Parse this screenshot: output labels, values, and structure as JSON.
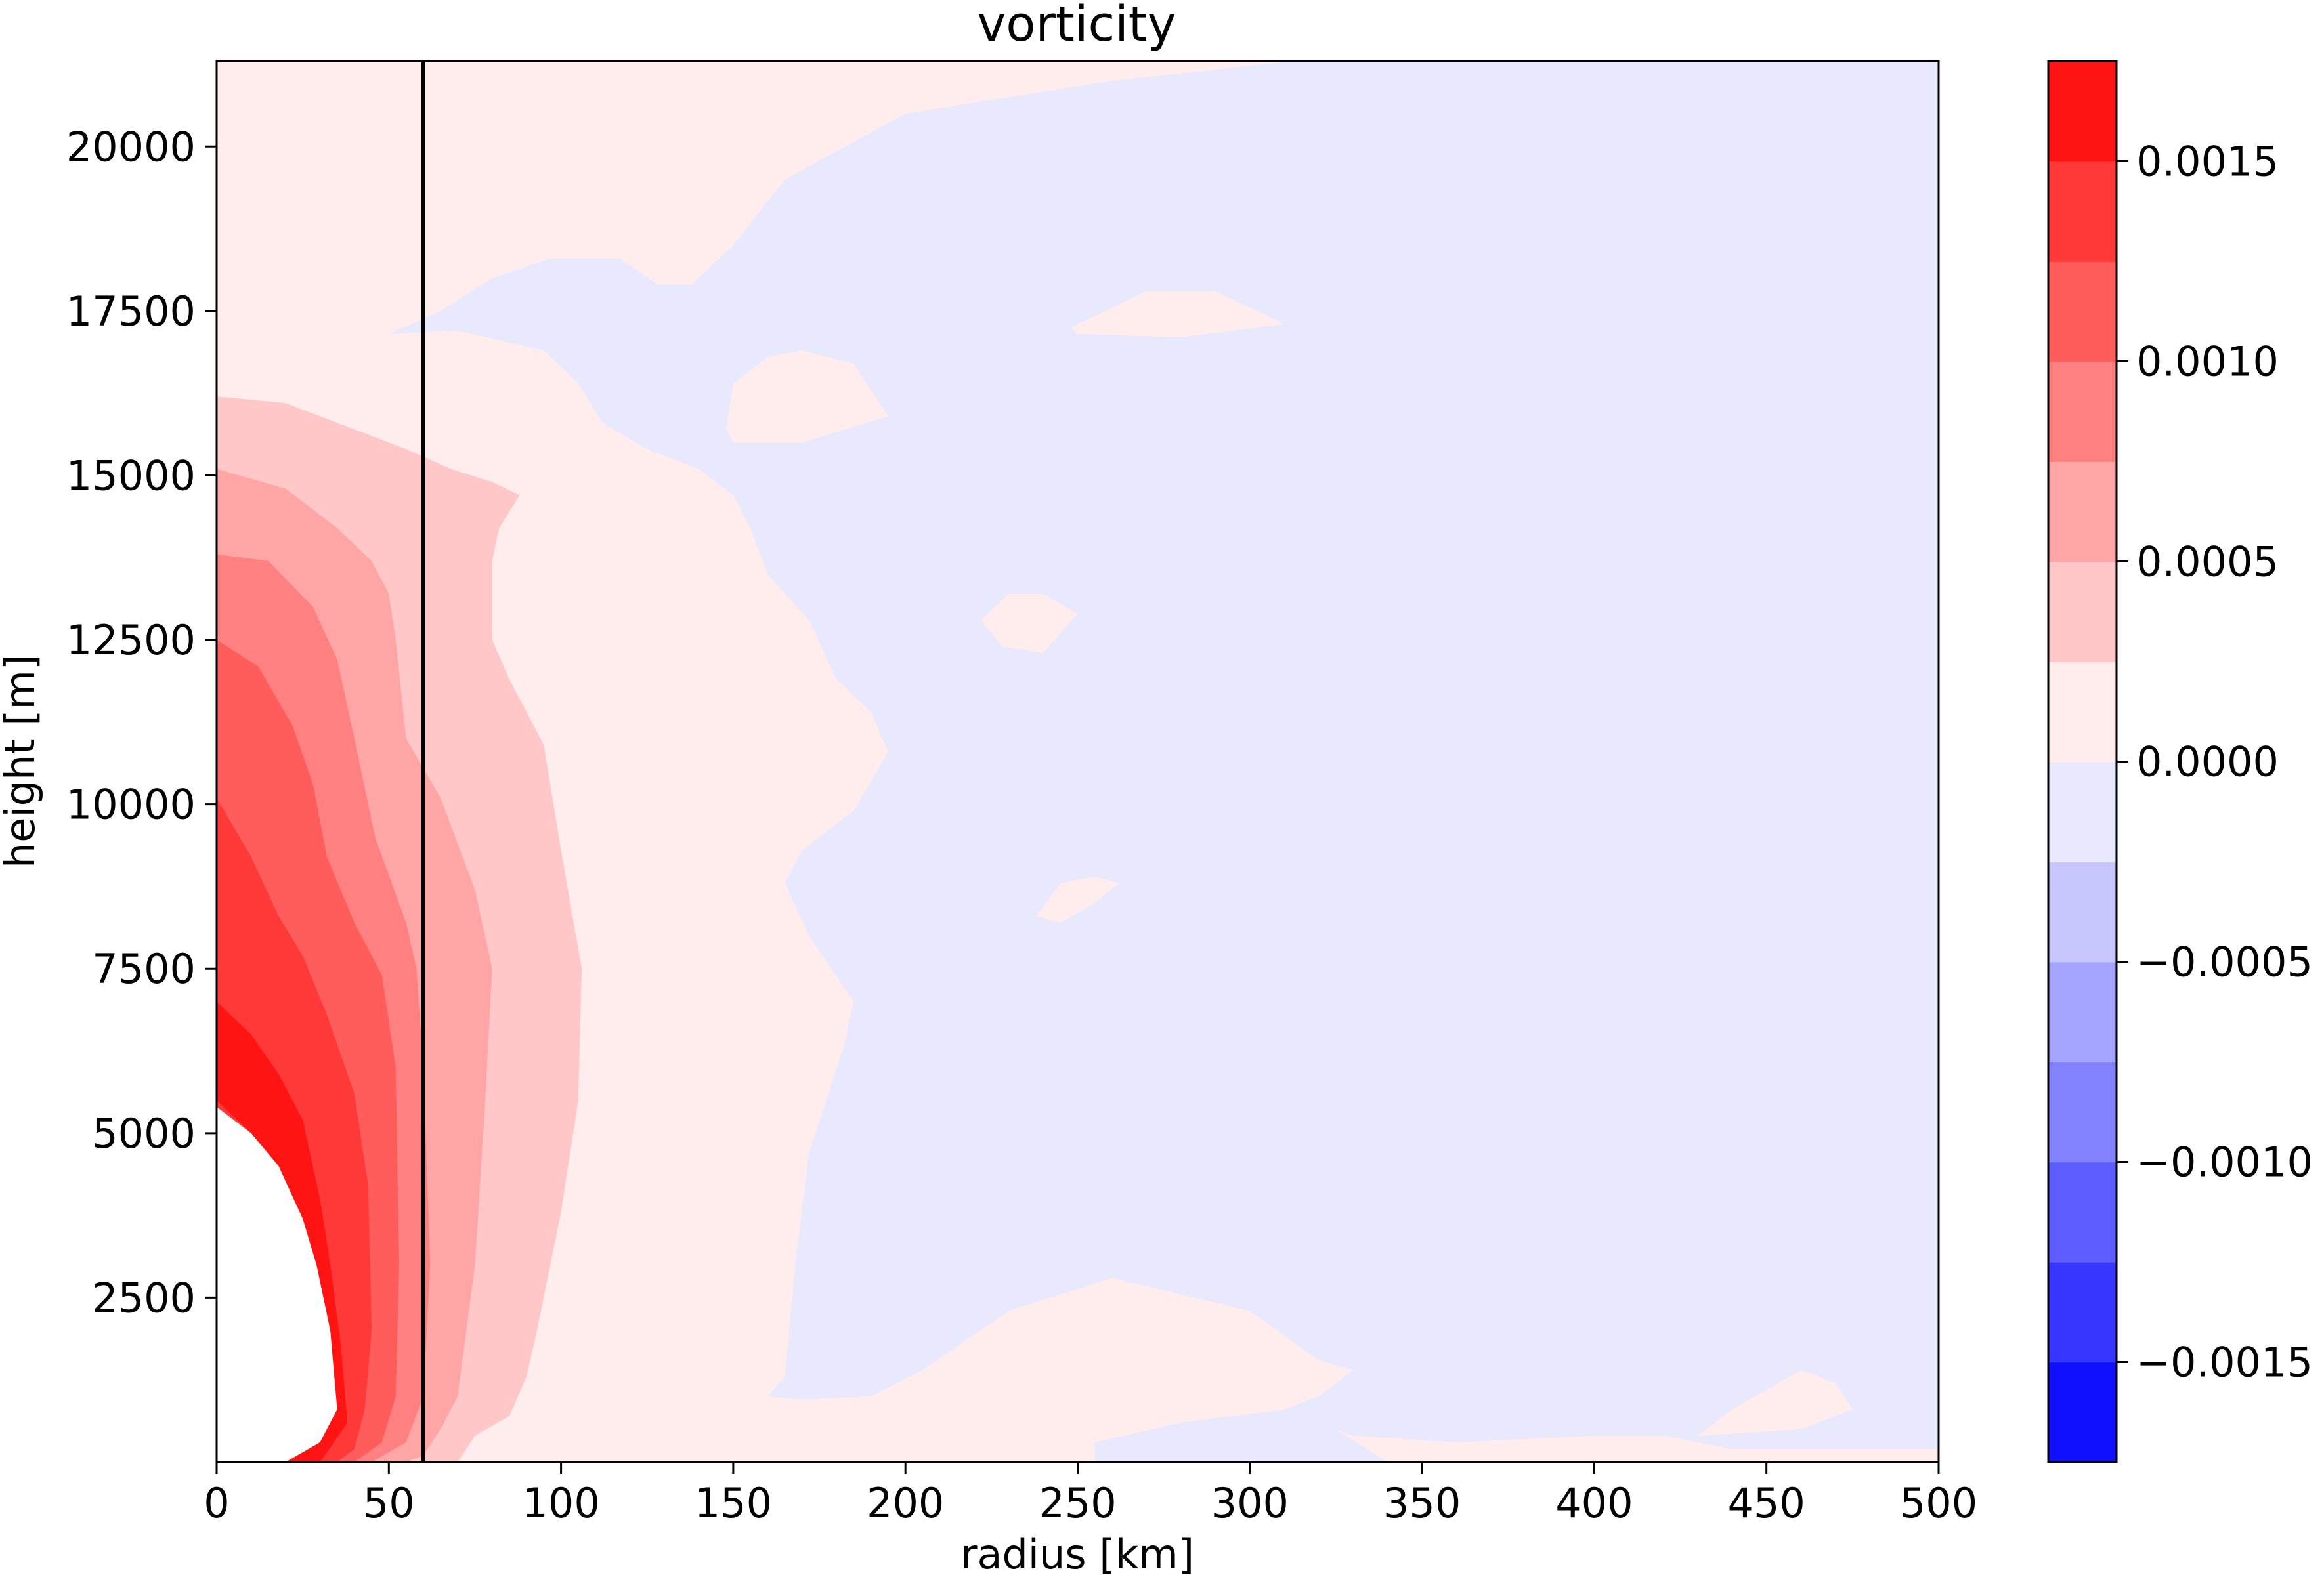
{
  "chart_data": {
    "type": "contour",
    "title": "vorticity",
    "xlabel": "radius [km]",
    "ylabel": "height [m]",
    "xlim": [
      0,
      500
    ],
    "ylim": [
      0,
      21300
    ],
    "x_ticks": [
      0,
      50,
      100,
      150,
      200,
      250,
      300,
      350,
      400,
      450,
      500
    ],
    "y_ticks": [
      2500,
      5000,
      7500,
      10000,
      12500,
      15000,
      17500,
      20000
    ],
    "x_tick_labels": [
      "0",
      "50",
      "100",
      "150",
      "200",
      "250",
      "300",
      "350",
      "400",
      "450",
      "500"
    ],
    "y_tick_labels": [
      "2500",
      "5000",
      "7500",
      "10000",
      "12500",
      "15000",
      "17500",
      "20000"
    ],
    "grid": false,
    "reference_line": {
      "x": 60,
      "color": "#000000"
    },
    "colorbar": {
      "placement": "right",
      "levels": [
        -0.00175,
        -0.0015,
        -0.00125,
        -0.001,
        -0.00075,
        -0.0005,
        -0.00025,
        0,
        0.00025,
        0.0005,
        0.00075,
        0.001,
        0.00125,
        0.0015,
        0.00175
      ],
      "colors": [
        "#1010ff",
        "#3636ff",
        "#5c5cff",
        "#8282ff",
        "#a5a5ff",
        "#c7c7fd",
        "#e9e9fd",
        "#ffecec",
        "#ffc7c7",
        "#ffa5a5",
        "#ff8080",
        "#ff5c5c",
        "#ff3838",
        "#ff1414"
      ],
      "tick_values": [
        -0.0015,
        -0.001,
        -0.0005,
        0,
        0.0005,
        0.001,
        0.0015
      ],
      "tick_labels": [
        "−0.0015",
        "−0.0010",
        "−0.0005",
        "0.0000",
        "0.0005",
        "0.0010",
        "0.0015"
      ]
    },
    "background_level_color": "#e9e9fd",
    "regions": [
      {
        "level_color": "#ffecec",
        "points": [
          [
            0,
            0
          ],
          [
            0,
            21300
          ],
          [
            313,
            21300
          ],
          [
            260,
            21000
          ],
          [
            200,
            20500
          ],
          [
            165,
            19500
          ],
          [
            150,
            18500
          ],
          [
            138,
            17900
          ],
          [
            128,
            17900
          ],
          [
            117,
            18300
          ],
          [
            97,
            18300
          ],
          [
            80,
            18000
          ],
          [
            65,
            17500
          ],
          [
            50,
            17150
          ],
          [
            70,
            17200
          ],
          [
            95,
            16900
          ],
          [
            105,
            16400
          ],
          [
            112,
            15800
          ],
          [
            125,
            15400
          ],
          [
            140,
            15100
          ],
          [
            150,
            14700
          ],
          [
            155,
            14200
          ],
          [
            160,
            13500
          ],
          [
            172,
            12800
          ],
          [
            180,
            11900
          ],
          [
            190,
            11400
          ],
          [
            195,
            10800
          ],
          [
            185,
            9900
          ],
          [
            170,
            9300
          ],
          [
            165,
            8800
          ],
          [
            172,
            8000
          ],
          [
            185,
            7000
          ],
          [
            182,
            6300
          ],
          [
            172,
            4700
          ],
          [
            168,
            3000
          ],
          [
            165,
            1300
          ],
          [
            160,
            1000
          ],
          [
            170,
            950
          ],
          [
            190,
            1000
          ],
          [
            205,
            1400
          ],
          [
            230,
            2300
          ],
          [
            260,
            2800
          ],
          [
            300,
            2300
          ],
          [
            320,
            1550
          ],
          [
            330,
            1400
          ],
          [
            320,
            1000
          ],
          [
            310,
            800
          ],
          [
            280,
            600
          ],
          [
            255,
            300
          ],
          [
            255,
            0
          ]
        ]
      },
      {
        "level_color": "#ffecec",
        "points": [
          [
            325,
            500
          ],
          [
            330,
            400
          ],
          [
            360,
            300
          ],
          [
            400,
            400
          ],
          [
            420,
            400
          ],
          [
            440,
            200
          ],
          [
            470,
            200
          ],
          [
            500,
            200
          ],
          [
            500,
            0
          ],
          [
            340,
            0
          ]
        ]
      },
      {
        "level_color": "#ffecec",
        "points": [
          [
            430,
            400
          ],
          [
            440,
            800
          ],
          [
            460,
            1400
          ],
          [
            470,
            1200
          ],
          [
            475,
            800
          ],
          [
            460,
            500
          ]
        ]
      },
      {
        "level_color": "#ffecec",
        "points": [
          [
            148,
            15700
          ],
          [
            150,
            16400
          ],
          [
            160,
            16800
          ],
          [
            170,
            16900
          ],
          [
            185,
            16700
          ],
          [
            195,
            15900
          ],
          [
            170,
            15500
          ],
          [
            150,
            15500
          ]
        ]
      },
      {
        "level_color": "#ffecec",
        "points": [
          [
            248,
            17250
          ],
          [
            270,
            17800
          ],
          [
            290,
            17800
          ],
          [
            310,
            17300
          ],
          [
            280,
            17100
          ],
          [
            250,
            17150
          ]
        ]
      },
      {
        "level_color": "#ffecec",
        "points": [
          [
            222,
            12800
          ],
          [
            230,
            13200
          ],
          [
            240,
            13200
          ],
          [
            250,
            12900
          ],
          [
            240,
            12300
          ],
          [
            228,
            12400
          ]
        ]
      },
      {
        "level_color": "#ffecec",
        "points": [
          [
            238,
            8300
          ],
          [
            245,
            8800
          ],
          [
            255,
            8900
          ],
          [
            262,
            8800
          ],
          [
            255,
            8500
          ],
          [
            245,
            8200
          ]
        ]
      },
      {
        "level_color": "#ffc7c7",
        "points": [
          [
            0,
            0
          ],
          [
            0,
            16200
          ],
          [
            20,
            16100
          ],
          [
            40,
            15700
          ],
          [
            55,
            15400
          ],
          [
            68,
            15100
          ],
          [
            80,
            14900
          ],
          [
            88,
            14700
          ],
          [
            82,
            14200
          ],
          [
            80,
            13700
          ],
          [
            80,
            12500
          ],
          [
            85,
            11900
          ],
          [
            95,
            10900
          ],
          [
            100,
            9300
          ],
          [
            106,
            7500
          ],
          [
            105,
            5500
          ],
          [
            100,
            3800
          ],
          [
            93,
            2000
          ],
          [
            90,
            1300
          ],
          [
            85,
            700
          ],
          [
            75,
            400
          ],
          [
            70,
            0
          ]
        ]
      },
      {
        "level_color": "#ffa5a5",
        "points": [
          [
            0,
            0
          ],
          [
            0,
            15100
          ],
          [
            20,
            14800
          ],
          [
            35,
            14200
          ],
          [
            45,
            13700
          ],
          [
            50,
            13200
          ],
          [
            52,
            12500
          ],
          [
            55,
            11000
          ],
          [
            65,
            10100
          ],
          [
            75,
            8700
          ],
          [
            80,
            7500
          ],
          [
            78,
            5500
          ],
          [
            75,
            3000
          ],
          [
            70,
            1000
          ],
          [
            65,
            500
          ],
          [
            60,
            100
          ],
          [
            55,
            0
          ]
        ]
      },
      {
        "level_color": "#ff8080",
        "points": [
          [
            0,
            0
          ],
          [
            0,
            13800
          ],
          [
            15,
            13700
          ],
          [
            28,
            13000
          ],
          [
            35,
            12200
          ],
          [
            40,
            11000
          ],
          [
            46,
            9500
          ],
          [
            55,
            8200
          ],
          [
            58,
            7500
          ],
          [
            60,
            6000
          ],
          [
            62,
            3000
          ],
          [
            60,
            1000
          ],
          [
            55,
            300
          ],
          [
            45,
            0
          ]
        ]
      },
      {
        "level_color": "#ff5c5c",
        "points": [
          [
            0,
            0
          ],
          [
            0,
            12500
          ],
          [
            12,
            12100
          ],
          [
            22,
            11200
          ],
          [
            28,
            10300
          ],
          [
            32,
            9200
          ],
          [
            40,
            8200
          ],
          [
            48,
            7400
          ],
          [
            52,
            6000
          ],
          [
            53,
            3000
          ],
          [
            52,
            1000
          ],
          [
            48,
            300
          ],
          [
            40,
            0
          ]
        ]
      },
      {
        "level_color": "#ff3838",
        "points": [
          [
            0,
            0
          ],
          [
            0,
            10100
          ],
          [
            10,
            9200
          ],
          [
            18,
            8300
          ],
          [
            25,
            7700
          ],
          [
            32,
            6800
          ],
          [
            40,
            5600
          ],
          [
            44,
            4200
          ],
          [
            45,
            2000
          ],
          [
            43,
            800
          ],
          [
            40,
            200
          ],
          [
            35,
            0
          ]
        ]
      },
      {
        "level_color": "#ff1414",
        "points": [
          [
            0,
            5500
          ],
          [
            0,
            7000
          ],
          [
            10,
            6500
          ],
          [
            18,
            5900
          ],
          [
            25,
            5200
          ],
          [
            30,
            4000
          ],
          [
            33,
            3000
          ],
          [
            36,
            1800
          ],
          [
            38,
            600
          ],
          [
            30,
            0
          ],
          [
            20,
            0
          ],
          [
            30,
            300
          ],
          [
            35,
            800
          ],
          [
            33,
            2000
          ],
          [
            29,
            3000
          ],
          [
            25,
            3700
          ],
          [
            18,
            4500
          ],
          [
            10,
            5000
          ]
        ]
      },
      {
        "level_color": "#ffffff",
        "points": [
          [
            0,
            0
          ],
          [
            0,
            5400
          ],
          [
            10,
            5000
          ],
          [
            18,
            4500
          ],
          [
            25,
            3700
          ],
          [
            29,
            3000
          ],
          [
            33,
            2000
          ],
          [
            35,
            800
          ],
          [
            30,
            300
          ],
          [
            20,
            0
          ]
        ]
      }
    ]
  }
}
